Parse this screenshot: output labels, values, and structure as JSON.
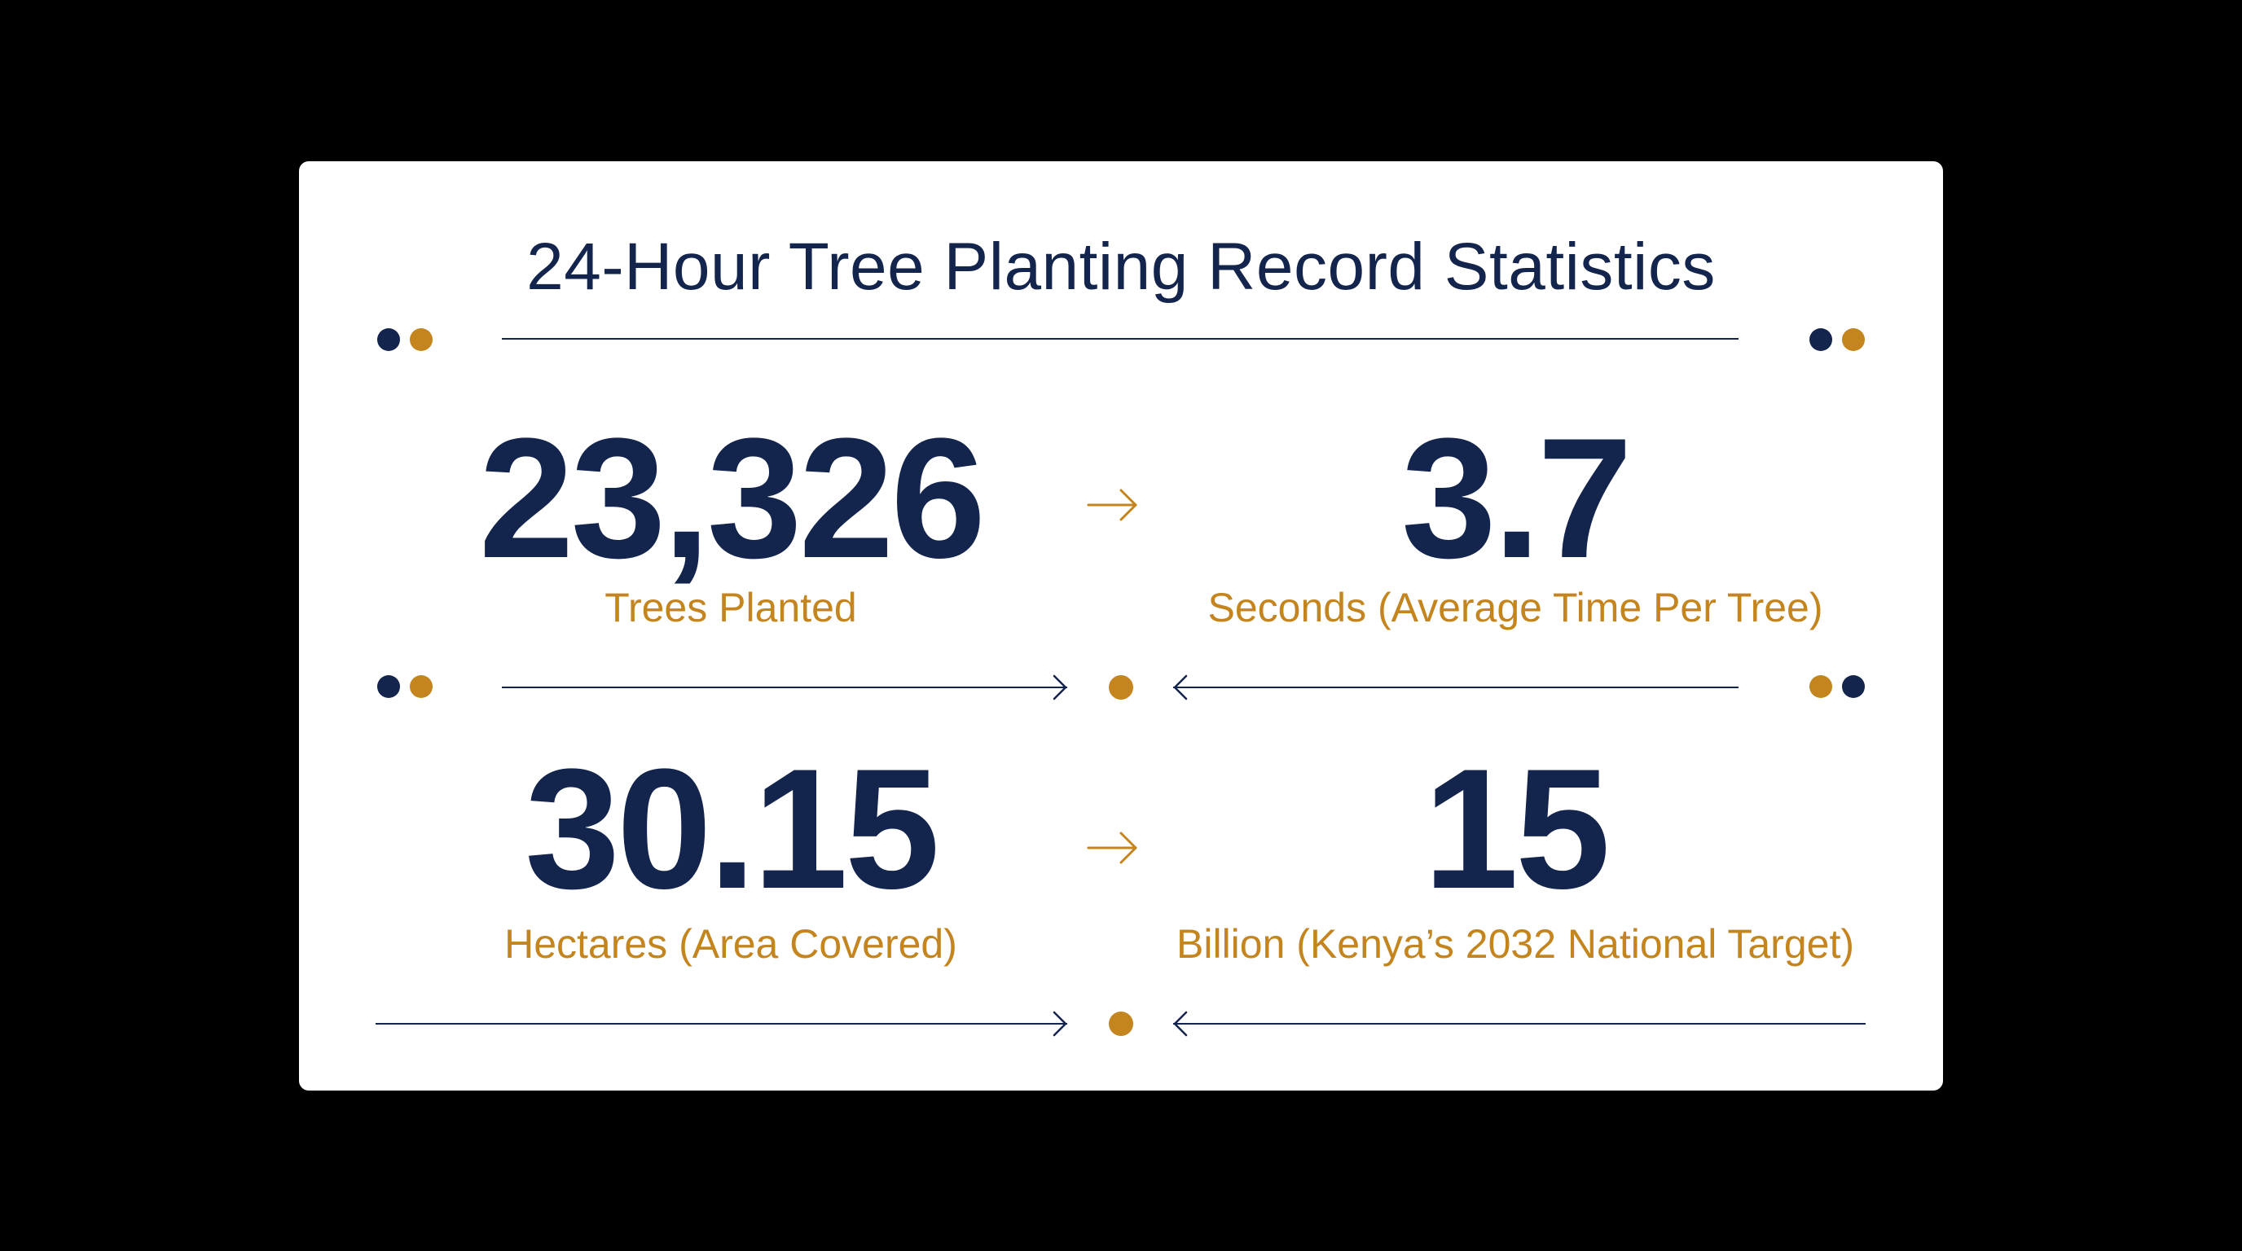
{
  "title": "24-Hour Tree Planting Record Statistics",
  "colors": {
    "navy": "#14254d",
    "gold": "#c4851f",
    "background": "#000000",
    "card": "#ffffff"
  },
  "stats": [
    {
      "value": "23,326",
      "label": "Trees Planted"
    },
    {
      "value": "3.7",
      "label": "Seconds (Average Time Per Tree)"
    },
    {
      "value": "30.15",
      "label": "Hectares (Area Covered)"
    },
    {
      "value": "15",
      "label": "Billion (Kenya’s 2032 National Target)"
    }
  ],
  "icons": {
    "connector": "arrow-right-icon",
    "rule_right": "arrow-right-icon",
    "rule_left": "arrow-left-icon",
    "ornament": "dot-pair-icon"
  }
}
